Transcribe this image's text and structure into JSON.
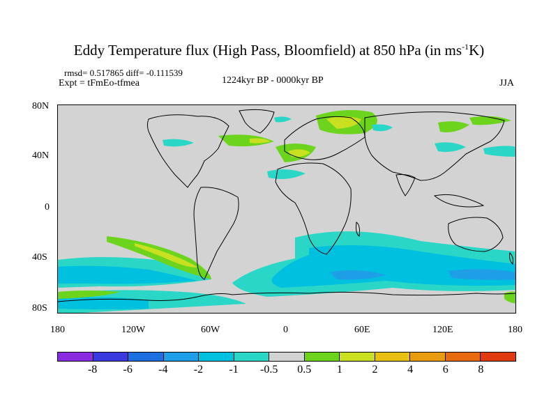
{
  "title": {
    "main": "Eddy Temperature flux (High Pass, Bloomfield) at 850 hPa (in ms",
    "sup": "-1",
    "end": "K)"
  },
  "stats": "rmsd= 0.517865 diff= -0.111539",
  "experiment": "Expt = tFmEo-tfmea",
  "period": "1224kyr BP - 0000kyr BP",
  "season": "JJA",
  "y_ticks": [
    "80N",
    "40N",
    "0",
    "40S",
    "80S"
  ],
  "x_ticks": [
    "180",
    "120W",
    "60W",
    "0",
    "60E",
    "120E",
    "180"
  ],
  "colorbar": {
    "colors": [
      "#8a2be2",
      "#3a3adf",
      "#1e6fe0",
      "#1e9ee6",
      "#00c0e0",
      "#2ad6c6",
      "#d3d3d3",
      "#6cd41c",
      "#c8e020",
      "#e8c010",
      "#e89a10",
      "#e86a10",
      "#e03a10"
    ],
    "labels": [
      "-8",
      "-6",
      "-4",
      "-2",
      "-1",
      "-0.5",
      "0.5",
      "1",
      "2",
      "4",
      "6",
      "8"
    ]
  }
}
